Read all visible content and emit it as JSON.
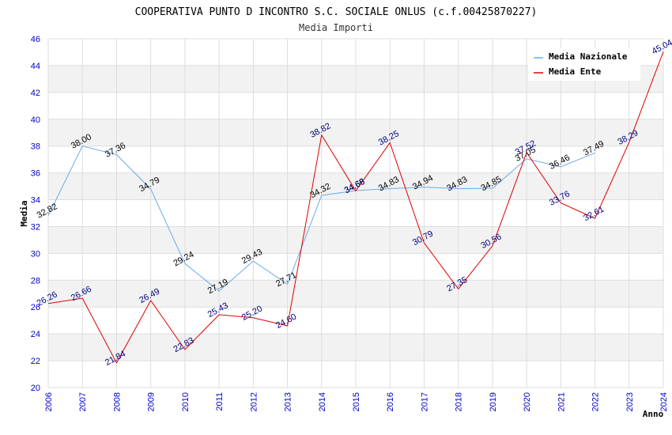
{
  "chart_data": {
    "type": "line",
    "title": "COOPERATIVA PUNTO D INCONTRO S.C. SOCIALE ONLUS (c.f.00425870227)",
    "subtitle": "Media Importi",
    "xlabel": "Anno",
    "ylabel": "Media",
    "ylim": [
      20,
      46
    ],
    "yticks": [
      "20",
      "22",
      "24",
      "26",
      "28",
      "30",
      "32",
      "34",
      "36",
      "38",
      "40",
      "42",
      "44",
      "46"
    ],
    "categories": [
      "2006",
      "2007",
      "2008",
      "2009",
      "2010",
      "2011",
      "2012",
      "2013",
      "2014",
      "2015",
      "2016",
      "2017",
      "2018",
      "2019",
      "2020",
      "2021",
      "2022",
      "2023",
      "2024"
    ],
    "grid": true,
    "legend_position": "top-right",
    "series": [
      {
        "name": "Media Nazionale",
        "color": "#6aaaea",
        "values": [
          32.82,
          38.0,
          37.36,
          34.79,
          29.24,
          27.19,
          29.43,
          27.71,
          34.32,
          34.68,
          34.83,
          34.94,
          34.83,
          34.85,
          37.05,
          36.46,
          37.49,
          null,
          null
        ],
        "labels": [
          "32.82",
          "38.00",
          "37.36",
          "34.79",
          "29.24",
          "27.19",
          "29.43",
          "27.71",
          "34.32",
          "34.68",
          "34.83",
          "34.94",
          "34.83",
          "34.85",
          "37.05",
          "36.46",
          "37.49",
          "",
          ""
        ]
      },
      {
        "name": "Media Ente",
        "color": "#dd0000",
        "values": [
          26.26,
          26.66,
          21.84,
          26.49,
          22.83,
          25.43,
          25.2,
          24.6,
          38.82,
          34.66,
          38.25,
          30.79,
          27.35,
          30.56,
          37.52,
          33.76,
          32.61,
          38.29,
          45.04
        ],
        "labels": [
          "26.26",
          "26.66",
          "21.84",
          "26.49",
          "22.83",
          "25.43",
          "25.20",
          "24.60",
          "38.82",
          "34.66",
          "38.25",
          "30.79",
          "27.35",
          "30.56",
          "37.52",
          "33.76",
          "32.61",
          "38.29",
          "45.04"
        ]
      }
    ]
  }
}
